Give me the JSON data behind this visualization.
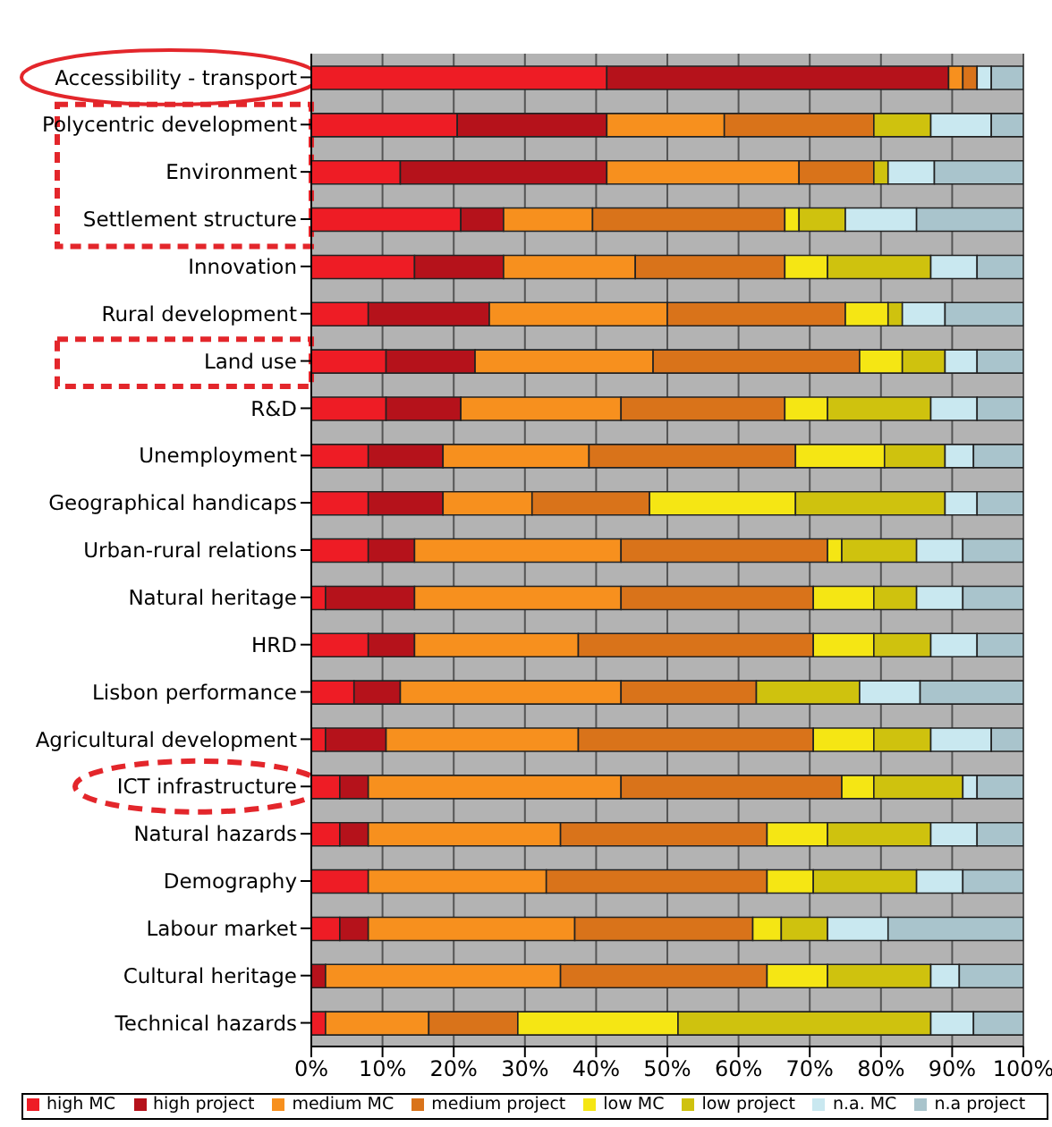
{
  "chart_data": {
    "type": "bar",
    "orientation": "horizontal",
    "stacked": true,
    "categories": [
      "Accessibility - transport",
      "Polycentric development",
      "Environment",
      "Settlement structure",
      "Innovation",
      "Rural development",
      "Land use",
      "R&D",
      "Unemployment",
      "Geographical handicaps",
      "Urban-rural relations",
      "Natural heritage",
      "HRD",
      "Lisbon performance",
      "Agricultural development",
      "ICT infrastructure",
      "Natural hazards",
      "Demography",
      "Labour market",
      "Cultural heritage",
      "Technical hazards"
    ],
    "series": [
      {
        "name": "high MC",
        "color": "#ee1c25",
        "values": [
          41.5,
          20.5,
          12.5,
          21,
          14.5,
          8,
          10.5,
          10.5,
          8,
          8,
          8,
          2,
          8,
          6,
          2,
          4,
          4,
          8,
          4,
          0,
          2
        ]
      },
      {
        "name": "high project",
        "color": "#b5121b",
        "values": [
          48,
          21,
          29,
          6,
          12.5,
          17,
          12.5,
          10.5,
          10.5,
          10.5,
          6.5,
          12.5,
          6.5,
          6.5,
          8.5,
          4,
          4,
          0,
          4,
          2,
          0
        ]
      },
      {
        "name": "medium MC",
        "color": "#f7901e",
        "values": [
          2,
          16.5,
          27,
          12.5,
          18.5,
          25,
          25,
          22.5,
          20.5,
          12.5,
          29,
          29,
          23,
          31,
          27,
          35.5,
          27,
          25,
          29,
          33,
          14.5
        ]
      },
      {
        "name": "medium project",
        "color": "#d9731a",
        "values": [
          2,
          21,
          10.5,
          27,
          21,
          25,
          29,
          23,
          29,
          16.5,
          29,
          27,
          33,
          19,
          33,
          31,
          29,
          31,
          25,
          29,
          12.5
        ]
      },
      {
        "name": "low MC",
        "color": "#f5e614",
        "values": [
          0,
          0,
          0,
          2,
          6,
          6,
          6,
          6,
          12.5,
          20.5,
          2,
          8.5,
          8.5,
          0,
          8.5,
          4.5,
          8.5,
          6.5,
          4,
          8.5,
          22.5
        ]
      },
      {
        "name": "low project",
        "color": "#cfc20e",
        "values": [
          0,
          8,
          2,
          6.5,
          14.5,
          2,
          6,
          14.5,
          8.5,
          21,
          10.5,
          6,
          8,
          14.5,
          8,
          12.5,
          14.5,
          14.5,
          6.5,
          14.5,
          35.5
        ]
      },
      {
        "name": "n.a. MC",
        "color": "#c9e8f0",
        "values": [
          2,
          8.5,
          6.5,
          10,
          6.5,
          6,
          4.5,
          6.5,
          4,
          4.5,
          6.5,
          6.5,
          6.5,
          8.5,
          8.5,
          2,
          6.5,
          6.5,
          8.5,
          4,
          6
        ]
      },
      {
        "name": "n.a project",
        "color": "#a9c4cc",
        "values": [
          4.5,
          4.5,
          12.5,
          15,
          6.5,
          11,
          6.5,
          6.5,
          7,
          6.5,
          8.5,
          8.5,
          6.5,
          14.5,
          4.5,
          6.5,
          6.5,
          8.5,
          19,
          9,
          7
        ]
      }
    ],
    "xlim": [
      0,
      100
    ],
    "xticks": [
      {
        "value": 0,
        "label": "0%"
      },
      {
        "value": 10,
        "label": "10%"
      },
      {
        "value": 20,
        "label": "20%"
      },
      {
        "value": 30,
        "label": "30%"
      },
      {
        "value": 40,
        "label": "40%"
      },
      {
        "value": 50,
        "label": "50%"
      },
      {
        "value": 60,
        "label": "60%"
      },
      {
        "value": 70,
        "label": "70%"
      },
      {
        "value": 80,
        "label": "80%"
      },
      {
        "value": 90,
        "label": "90%"
      },
      {
        "value": 100,
        "label": "100%"
      }
    ],
    "grid": "x",
    "legend": "bottom"
  }
}
